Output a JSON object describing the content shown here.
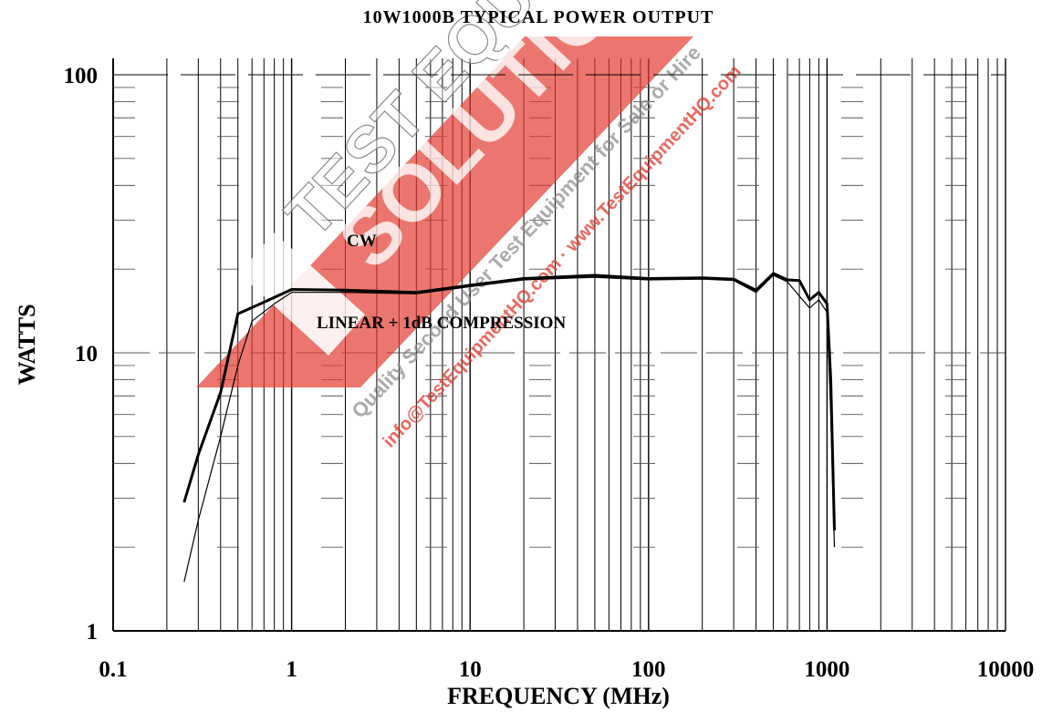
{
  "chart_data": {
    "type": "line",
    "title": "10W1000B TYPICAL POWER OUTPUT",
    "xlabel": "FREQUENCY (MHz)",
    "ylabel": "WATTS",
    "xscale": "log",
    "yscale": "log",
    "xlim": [
      0.1,
      10000
    ],
    "ylim": [
      1,
      100
    ],
    "grid": true,
    "x_tick_labels": [
      "0.1",
      "1",
      "10",
      "100",
      "1000",
      "10000"
    ],
    "y_tick_labels": [
      "1",
      "10",
      "100"
    ],
    "annotations": [
      "CW",
      "LINEAR + 1dB COMPRESSION"
    ],
    "series": [
      {
        "name": "CW",
        "color": "#000000",
        "points": [
          [
            0.25,
            2.9
          ],
          [
            0.3,
            4.3
          ],
          [
            0.4,
            7.2
          ],
          [
            0.5,
            13.8
          ],
          [
            0.7,
            15.2
          ],
          [
            1.0,
            16.9
          ],
          [
            2,
            16.8
          ],
          [
            5,
            16.5
          ],
          [
            10,
            17.5
          ],
          [
            20,
            18.5
          ],
          [
            50,
            19.0
          ],
          [
            100,
            18.5
          ],
          [
            200,
            18.6
          ],
          [
            300,
            18.4
          ],
          [
            400,
            16.8
          ],
          [
            500,
            19.3
          ],
          [
            600,
            18.3
          ],
          [
            700,
            18.2
          ],
          [
            800,
            15.5
          ],
          [
            900,
            16.5
          ],
          [
            1000,
            15.0
          ],
          [
            1050,
            8.0
          ],
          [
            1100,
            2.3
          ]
        ]
      },
      {
        "name": "LINEAR + 1dB COMPRESSION",
        "color": "#000000",
        "points": [
          [
            0.25,
            1.5
          ],
          [
            0.3,
            2.5
          ],
          [
            0.4,
            5.0
          ],
          [
            0.5,
            9.0
          ],
          [
            0.6,
            13.0
          ],
          [
            0.8,
            15.0
          ],
          [
            1.0,
            16.5
          ],
          [
            2,
            16.5
          ],
          [
            5,
            16.3
          ],
          [
            10,
            17.3
          ],
          [
            20,
            18.3
          ],
          [
            50,
            18.7
          ],
          [
            100,
            18.3
          ],
          [
            200,
            18.4
          ],
          [
            300,
            18.2
          ],
          [
            400,
            16.5
          ],
          [
            500,
            19.0
          ],
          [
            600,
            18.0
          ],
          [
            700,
            16.0
          ],
          [
            800,
            14.5
          ],
          [
            900,
            15.5
          ],
          [
            1000,
            14.0
          ],
          [
            1050,
            6.0
          ],
          [
            1100,
            2.0
          ]
        ]
      }
    ]
  },
  "watermark": {
    "line1": "TEST EQUIPMENT",
    "line2": "SOLUTIONS",
    "line3": "Quality Second User Test Equipment for Sale or Hire",
    "line4": "info@TestEquipmentHQ.com · www.TestEquipmentHQ.com",
    "color": "#e23a2e"
  }
}
